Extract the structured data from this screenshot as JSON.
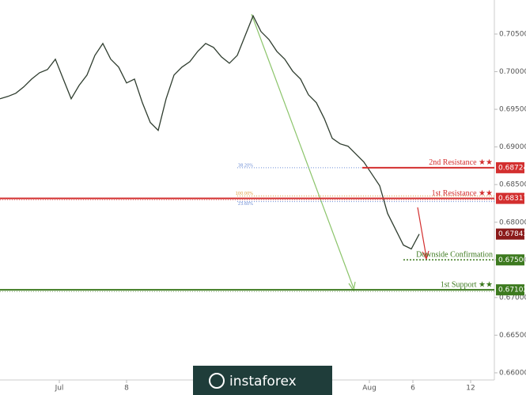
{
  "chart_data": {
    "type": "line",
    "series": [
      {
        "name": "Price",
        "color": "#2f3d2f",
        "x": [
          0,
          1,
          2,
          3,
          4,
          5,
          6,
          7,
          8,
          9,
          10,
          11,
          12,
          13,
          14,
          15,
          16,
          17,
          18,
          19,
          20,
          21,
          22,
          23,
          24,
          25,
          26,
          27,
          28,
          29,
          30,
          31,
          32,
          33,
          34,
          35,
          36,
          37,
          38,
          39,
          40,
          41,
          42,
          43,
          44,
          45,
          46,
          47,
          48,
          49,
          50,
          51,
          52,
          53
        ],
        "values": [
          0.6964,
          0.69671,
          0.69713,
          0.69797,
          0.69902,
          0.69986,
          0.70028,
          0.70165,
          0.69902,
          0.6964,
          0.69818,
          0.69955,
          0.70217,
          0.70375,
          0.70165,
          0.7006,
          0.6985,
          0.69902,
          0.69587,
          0.69325,
          0.6922,
          0.6964,
          0.69955,
          0.7006,
          0.70133,
          0.7027,
          0.70375,
          0.70322,
          0.70196,
          0.70112,
          0.70217,
          0.7048,
          0.70742,
          0.70532,
          0.70427,
          0.7027,
          0.70165,
          0.70007,
          0.69902,
          0.69692,
          0.69587,
          0.69377,
          0.69115,
          0.69041,
          0.6901,
          0.68905,
          0.688,
          0.68642,
          0.68485,
          0.68117,
          0.67907,
          0.67697,
          0.67645,
          0.67843
        ]
      }
    ],
    "last_label": "0.67843",
    "xlim": [
      0,
      62.5
    ],
    "xticks": [
      {
        "value": 7.5,
        "label": "Jul"
      },
      {
        "value": 16,
        "label": "8"
      },
      {
        "value": 46.7,
        "label": "Aug"
      },
      {
        "value": 52.2,
        "label": "6"
      },
      {
        "value": 59.5,
        "label": "12"
      }
    ],
    "ylim": [
      0.65905,
      0.70952
    ],
    "yticks": [
      {
        "value": 0.705,
        "label": "0.70500"
      },
      {
        "value": 0.7,
        "label": "0.70000"
      },
      {
        "value": 0.695,
        "label": "0.69500"
      },
      {
        "value": 0.69,
        "label": "0.69000"
      },
      {
        "value": 0.685,
        "label": "0.68500"
      },
      {
        "value": 0.68,
        "label": "0.68000"
      },
      {
        "value": 0.675,
        "label": "0.67500"
      },
      {
        "value": 0.67,
        "label": "0.67000"
      },
      {
        "value": 0.665,
        "label": "0.66500"
      },
      {
        "value": 0.66,
        "label": "0.66000"
      }
    ],
    "levels": [
      {
        "name": "2nd Resistance ★★",
        "value": 0.68724,
        "label": "0.68724",
        "color": "#d32f2f"
      },
      {
        "name": "1st Resistance ★★",
        "value": 0.68317,
        "label": "0.68317",
        "color": "#d32f2f"
      },
      {
        "name": "Downside Confirmation",
        "value": 0.675,
        "label": "0.67500",
        "color": "#3d7a1f"
      },
      {
        "name": "1st Support ★★",
        "value": 0.67102,
        "label": "0.67102",
        "color": "#3d7a1f"
      }
    ],
    "fib_levels": [
      {
        "label": "38.20%",
        "value": 0.68724,
        "color": "#6f8fd6"
      },
      {
        "label": "100.00%",
        "value": 0.68348,
        "color": "#e0a040"
      },
      {
        "label": "23.60%",
        "value": 0.68275,
        "color": "#6f8fd6"
      }
    ],
    "watermark": "instaforex"
  }
}
